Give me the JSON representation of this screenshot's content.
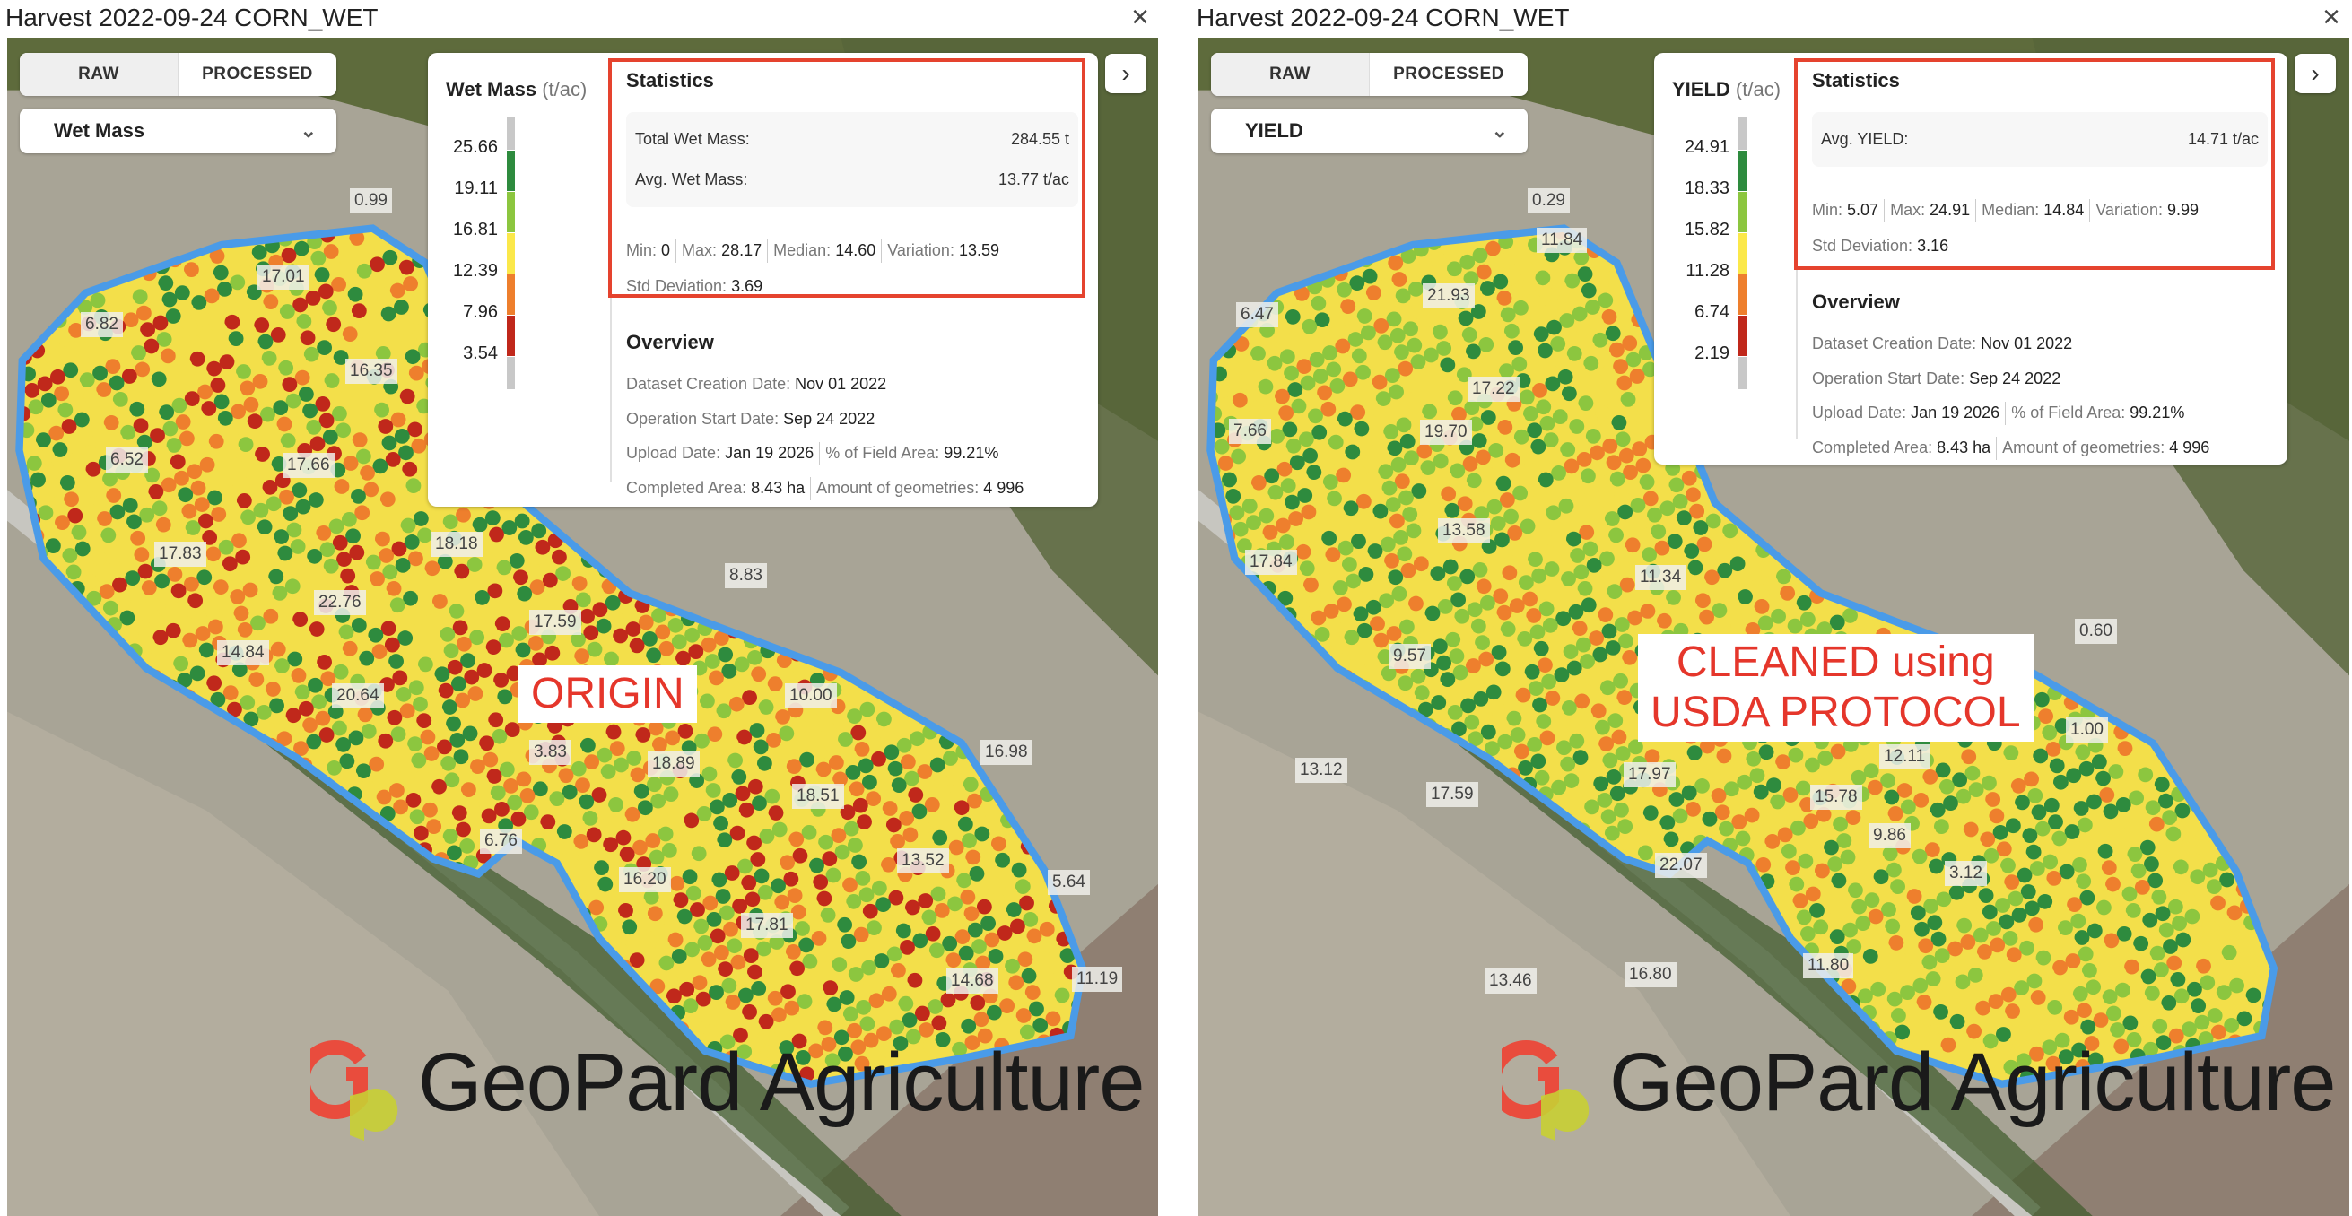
{
  "windows": [
    {
      "title": "Harvest 2022-09-24 CORN_WET",
      "close": "×",
      "tabs": [
        "RAW",
        "PROCESSED"
      ],
      "attribute": "Wet Mass",
      "legend": {
        "name": "Wet Mass",
        "unit": "(t/ac)",
        "values": [
          "25.66",
          "19.11",
          "16.81",
          "12.39",
          "7.96",
          "3.54"
        ]
      },
      "stats": {
        "title": "Statistics",
        "summary": [
          {
            "label": "Total Wet Mass:",
            "value": "284.55 t"
          },
          {
            "label": "Avg. Wet Mass:",
            "value": "13.77 t/ac"
          }
        ],
        "min": "0",
        "max": "28.17",
        "median": "14.60",
        "variation": "13.59",
        "std": "3.69"
      },
      "map_labels": [
        "6.82",
        "17.01",
        "16.35",
        "6.52",
        "17.66",
        "18.18",
        "17.83",
        "22.76",
        "14.84",
        "20.64",
        "3.83",
        "18.89",
        "10.00",
        "18.51",
        "16.20",
        "17.81",
        "13.52",
        "14.68",
        "0.99",
        "8.83",
        "17.59",
        "16.98",
        "5.64",
        "11.19",
        "6.76"
      ],
      "note": [
        "ORIGIN"
      ]
    },
    {
      "title": "Harvest 2022-09-24 CORN_WET",
      "close": "×",
      "tabs": [
        "RAW",
        "PROCESSED"
      ],
      "attribute": "YIELD",
      "legend": {
        "name": "YIELD",
        "unit": "(t/ac)",
        "values": [
          "24.91",
          "18.33",
          "15.82",
          "11.28",
          "6.74",
          "2.19"
        ]
      },
      "stats": {
        "title": "Statistics",
        "summary": [
          {
            "label": "Avg. YIELD:",
            "value": "14.71 t/ac"
          }
        ],
        "min": "5.07",
        "max": "24.91",
        "median": "14.84",
        "variation": "9.99",
        "std": "3.16"
      },
      "map_labels": [
        "6.47",
        "21.93",
        "11.84",
        "7.66",
        "19.70",
        "17.22",
        "17.84",
        "13.58",
        "11.34",
        "9.57",
        "13.12",
        "17.59",
        "17.97",
        "22.07",
        "15.78",
        "9.86",
        "13.46",
        "16.80",
        "11.80",
        "12.11",
        "1.00",
        "0.60",
        "0.29",
        "3.12"
      ],
      "note": [
        "CLEANED using",
        "USDA PROTOCOL"
      ]
    }
  ],
  "labels": {
    "min": "Min:",
    "max": "Max:",
    "median": "Median:",
    "variation": "Variation:",
    "std": "Std Deviation:"
  },
  "overview": {
    "title": "Overview",
    "creation_label": "Dataset Creation Date:",
    "creation": "Nov 01 2022",
    "start_label": "Operation Start Date:",
    "start": "Sep 24 2022",
    "upload_label": "Upload Date:",
    "upload": "Jan 19 2026",
    "pct_label": "% of Field Area:",
    "pct": "99.21%",
    "area_label": "Completed Area:",
    "area": "8.43 ha",
    "geom_label": "Amount of geometries:",
    "geom": "4 996"
  },
  "logo": {
    "text": "GeoPard Agriculture"
  },
  "icons": {
    "next": "chevron-right-icon",
    "dropdown": "chevron-down-icon",
    "close": "close-icon"
  },
  "colors": {
    "legend": [
      "#c8c8c8",
      "#2e8b3e",
      "#8cc63f",
      "#fbe84a",
      "#ee7f2d",
      "#c0281b",
      "#c8c8c8"
    ],
    "boundary": "#4a9be8",
    "highlight": "#e5432e"
  }
}
